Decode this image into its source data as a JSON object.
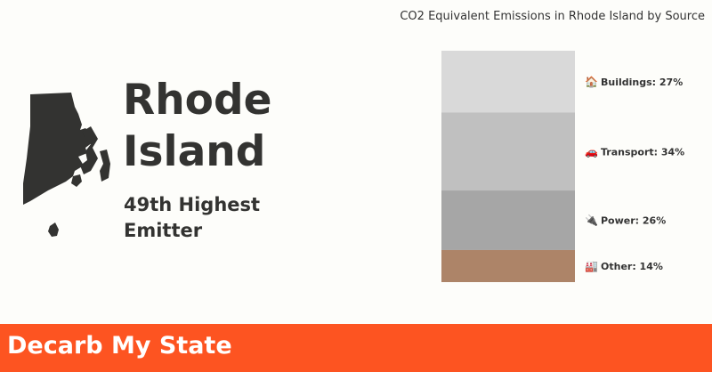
{
  "state": {
    "name_line1": "Rhode",
    "name_line2": "Island",
    "rank_line1": "49th Highest",
    "rank_line2": "Emitter"
  },
  "footer": {
    "title": "Decarb My State",
    "color": "#fd5421"
  },
  "chart_data": {
    "type": "bar",
    "stacked": true,
    "orientation": "vertical",
    "title": "CO2 Equivalent Emissions in Rhode Island by Source",
    "unit": "%",
    "series": [
      {
        "name": "Buildings",
        "icon": "house-icon",
        "emoji": "🏠",
        "value": 27,
        "label": "Buildings: 27%",
        "color": "#d9d9d9"
      },
      {
        "name": "Transport",
        "icon": "car-icon",
        "emoji": "🚗",
        "value": 34,
        "label": "Transport: 34%",
        "color": "#c0c0c0"
      },
      {
        "name": "Power",
        "icon": "plug-icon",
        "emoji": "🔌",
        "value": 26,
        "label": "Power: 26%",
        "color": "#a6a6a6"
      },
      {
        "name": "Other",
        "icon": "factory-icon",
        "emoji": "🏭",
        "value": 14,
        "label": "Other: 14%",
        "color": "#ad8468"
      }
    ]
  }
}
